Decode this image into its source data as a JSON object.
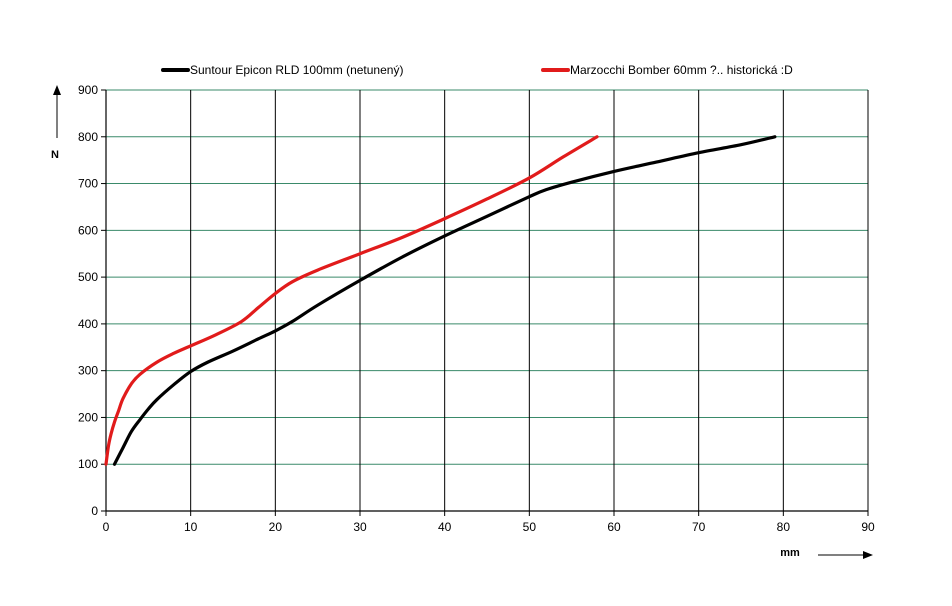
{
  "chart_data": {
    "type": "line",
    "title": "",
    "xlabel": "mm",
    "ylabel": "N",
    "xlim": [
      0,
      90
    ],
    "ylim": [
      0,
      900
    ],
    "xticks": [
      0,
      10,
      20,
      30,
      40,
      50,
      60,
      70,
      80,
      90
    ],
    "yticks": [
      0,
      100,
      200,
      300,
      400,
      500,
      600,
      700,
      800,
      900
    ],
    "grid": true,
    "legend_position": "top",
    "series": [
      {
        "name": "Suntour Epicon RLD 100mm (netunený)",
        "color": "#000000",
        "x": [
          1,
          2,
          3,
          4,
          5,
          6,
          8,
          10,
          12,
          15,
          18,
          20,
          22,
          25,
          30,
          35,
          40,
          45,
          50,
          52,
          55,
          60,
          65,
          70,
          75,
          79
        ],
        "y": [
          100,
          135,
          170,
          195,
          218,
          238,
          270,
          298,
          318,
          342,
          368,
          385,
          405,
          440,
          493,
          543,
          588,
          630,
          672,
          687,
          703,
          726,
          746,
          766,
          783,
          800
        ]
      },
      {
        "name": "Marzocchi Bomber 60mm ?.. historická :D",
        "color": "#e11b1b",
        "x": [
          0,
          0.3,
          0.6,
          1,
          1.5,
          2,
          3,
          4,
          6,
          8,
          10,
          13,
          16,
          18,
          20,
          22,
          25,
          30,
          35,
          40,
          45,
          50,
          54,
          58
        ],
        "y": [
          100,
          140,
          165,
          190,
          215,
          240,
          272,
          292,
          318,
          337,
          353,
          377,
          405,
          435,
          465,
          490,
          515,
          550,
          585,
          625,
          667,
          712,
          757,
          800
        ]
      }
    ]
  }
}
